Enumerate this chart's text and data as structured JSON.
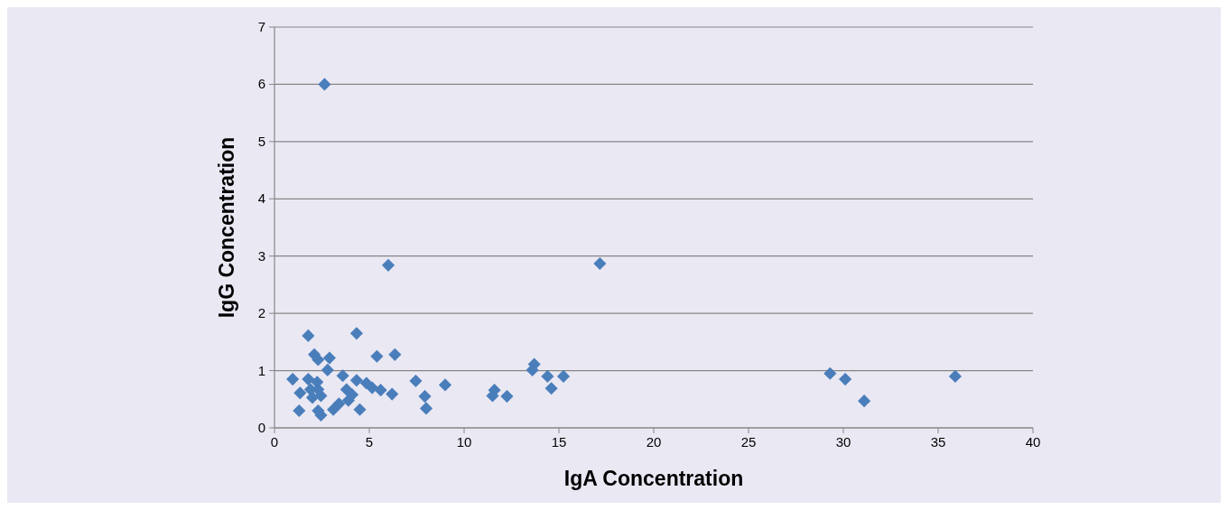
{
  "chart_data": {
    "type": "scatter",
    "xlabel": "IgA Concentration",
    "ylabel": "IgG Concentration",
    "xlim": [
      0,
      40
    ],
    "ylim": [
      0,
      7
    ],
    "xticks": [
      0,
      5,
      10,
      15,
      20,
      25,
      30,
      35,
      40
    ],
    "yticks": [
      0,
      1,
      2,
      3,
      4,
      5,
      6,
      7
    ],
    "grid": "y",
    "marker": "diamond",
    "series": [
      {
        "color": "#4a7ebb",
        "x": [
          2.64,
          6.0,
          17.16,
          1.78,
          4.33,
          2.1,
          2.3,
          2.9,
          5.4,
          6.35,
          0.96,
          1.78,
          2.25,
          2.8,
          3.6,
          4.33,
          4.85,
          5.15,
          5.6,
          6.2,
          1.35,
          1.9,
          2.3,
          2.45,
          2.0,
          3.8,
          4.1,
          3.9,
          3.4,
          3.1,
          2.3,
          2.45,
          4.5,
          1.3,
          7.45,
          7.93,
          8.0,
          9.0,
          11.6,
          11.5,
          12.26,
          13.6,
          13.7,
          14.4,
          14.6,
          15.24,
          29.3,
          30.1,
          31.1,
          35.9
        ],
        "values": [
          6.0,
          2.84,
          2.87,
          1.61,
          1.65,
          1.28,
          1.19,
          1.22,
          1.25,
          1.28,
          0.85,
          0.85,
          0.8,
          1.01,
          0.91,
          0.83,
          0.78,
          0.7,
          0.66,
          0.59,
          0.61,
          0.67,
          0.67,
          0.56,
          0.53,
          0.67,
          0.58,
          0.48,
          0.42,
          0.32,
          0.3,
          0.22,
          0.32,
          0.3,
          0.82,
          0.55,
          0.34,
          0.75,
          0.66,
          0.56,
          0.55,
          1.01,
          1.11,
          0.9,
          0.69,
          0.9,
          0.95,
          0.85,
          0.47,
          0.9
        ]
      }
    ]
  }
}
